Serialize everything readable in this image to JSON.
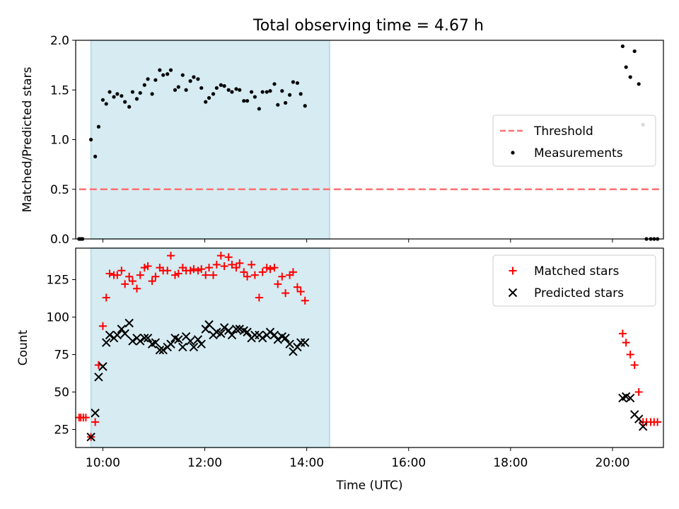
{
  "figure": {
    "title": "Total observing time = 4.67 h"
  },
  "chart_data": [
    {
      "type": "scatter",
      "ylabel": "Matched/Predicted stars",
      "xlabel": "",
      "xlim": [
        "09:28",
        "21:00"
      ],
      "ylim": [
        0,
        2.0
      ],
      "yticks": [
        0.0,
        0.5,
        1.0,
        1.5,
        2.0
      ],
      "ytick_labels": [
        "0.0",
        "0.5",
        "1.0",
        "1.5",
        "2.0"
      ],
      "xticks": [
        "10:00",
        "12:00",
        "14:00",
        "16:00",
        "18:00",
        "20:00"
      ],
      "observing_window": [
        "09:46",
        "14:27"
      ],
      "legend_position": "center-right",
      "threshold": {
        "name": "Threshold",
        "value": 0.5,
        "x_range": [
          "09:32",
          "20:57"
        ],
        "color": "#ff7070",
        "style": "dashed"
      },
      "series": [
        {
          "name": "Measurements",
          "marker": "dot",
          "color": "#000000",
          "points": [
            [
              "09:32",
              0
            ],
            [
              "09:34",
              0
            ],
            [
              "09:36",
              0
            ],
            [
              "09:46",
              1.0
            ],
            [
              "09:51",
              0.83
            ],
            [
              "09:55",
              1.13
            ],
            [
              "10:00",
              1.4
            ],
            [
              "10:04",
              1.36
            ],
            [
              "10:08",
              1.48
            ],
            [
              "10:13",
              1.43
            ],
            [
              "10:17",
              1.46
            ],
            [
              "10:22",
              1.44
            ],
            [
              "10:26",
              1.38
            ],
            [
              "10:31",
              1.33
            ],
            [
              "10:35",
              1.48
            ],
            [
              "10:40",
              1.41
            ],
            [
              "10:44",
              1.47
            ],
            [
              "10:49",
              1.55
            ],
            [
              "10:53",
              1.61
            ],
            [
              "10:58",
              1.46
            ],
            [
              "11:02",
              1.6
            ],
            [
              "11:07",
              1.7
            ],
            [
              "11:11",
              1.65
            ],
            [
              "11:16",
              1.66
            ],
            [
              "11:20",
              1.7
            ],
            [
              "11:25",
              1.5
            ],
            [
              "11:29",
              1.53
            ],
            [
              "11:34",
              1.65
            ],
            [
              "11:38",
              1.5
            ],
            [
              "11:43",
              1.59
            ],
            [
              "11:47",
              1.63
            ],
            [
              "11:52",
              1.61
            ],
            [
              "11:56",
              1.52
            ],
            [
              "12:01",
              1.38
            ],
            [
              "12:05",
              1.42
            ],
            [
              "12:10",
              1.46
            ],
            [
              "12:14",
              1.52
            ],
            [
              "12:19",
              1.55
            ],
            [
              "12:23",
              1.54
            ],
            [
              "12:28",
              1.5
            ],
            [
              "12:32",
              1.48
            ],
            [
              "12:37",
              1.51
            ],
            [
              "12:41",
              1.5
            ],
            [
              "12:46",
              1.39
            ],
            [
              "12:50",
              1.39
            ],
            [
              "12:55",
              1.48
            ],
            [
              "12:59",
              1.43
            ],
            [
              "13:04",
              1.31
            ],
            [
              "13:08",
              1.48
            ],
            [
              "13:13",
              1.48
            ],
            [
              "13:17",
              1.49
            ],
            [
              "13:22",
              1.56
            ],
            [
              "13:26",
              1.35
            ],
            [
              "13:31",
              1.49
            ],
            [
              "13:35",
              1.37
            ],
            [
              "13:40",
              1.45
            ],
            [
              "13:44",
              1.58
            ],
            [
              "13:49",
              1.57
            ],
            [
              "13:53",
              1.46
            ],
            [
              "13:58",
              1.34
            ],
            [
              "20:12",
              1.94
            ],
            [
              "20:16",
              1.73
            ],
            [
              "20:21",
              1.63
            ],
            [
              "20:26",
              1.89
            ],
            [
              "20:31",
              1.56
            ],
            [
              "20:36",
              1.15
            ],
            [
              "20:40",
              0
            ],
            [
              "20:45",
              0
            ],
            [
              "20:49",
              0
            ],
            [
              "20:53",
              0
            ]
          ]
        }
      ]
    },
    {
      "type": "scatter",
      "ylabel": "Count",
      "xlabel": "Time (UTC)",
      "xlim": [
        "09:28",
        "21:00"
      ],
      "ylim": [
        13,
        146
      ],
      "yticks": [
        25,
        50,
        75,
        100,
        125
      ],
      "ytick_labels": [
        "25",
        "50",
        "75",
        "100",
        "125"
      ],
      "xticks": [
        "10:00",
        "12:00",
        "14:00",
        "16:00",
        "18:00",
        "20:00"
      ],
      "observing_window": [
        "09:46",
        "14:27"
      ],
      "legend_position": "upper-right",
      "series": [
        {
          "name": "Matched stars",
          "marker": "plus",
          "color": "#ff0000",
          "points": [
            [
              "09:32",
              33
            ],
            [
              "09:34",
              33
            ],
            [
              "09:37",
              33
            ],
            [
              "09:40",
              33
            ],
            [
              "09:46",
              20
            ],
            [
              "09:51",
              30
            ],
            [
              "09:55",
              68
            ],
            [
              "10:00",
              94
            ],
            [
              "10:04",
              113
            ],
            [
              "10:08",
              129
            ],
            [
              "10:13",
              128
            ],
            [
              "10:17",
              128
            ],
            [
              "10:22",
              131
            ],
            [
              "10:26",
              122
            ],
            [
              "10:31",
              127
            ],
            [
              "10:35",
              124
            ],
            [
              "10:40",
              119
            ],
            [
              "10:44",
              128
            ],
            [
              "10:49",
              133
            ],
            [
              "10:53",
              134
            ],
            [
              "10:58",
              124
            ],
            [
              "11:02",
              127
            ],
            [
              "11:07",
              133
            ],
            [
              "11:11",
              131
            ],
            [
              "11:16",
              131
            ],
            [
              "11:20",
              141
            ],
            [
              "11:25",
              128
            ],
            [
              "11:29",
              129
            ],
            [
              "11:34",
              133
            ],
            [
              "11:38",
              131
            ],
            [
              "11:43",
              131
            ],
            [
              "11:47",
              132
            ],
            [
              "11:52",
              131
            ],
            [
              "11:56",
              132
            ],
            [
              "12:01",
              128
            ],
            [
              "12:05",
              133
            ],
            [
              "12:10",
              128
            ],
            [
              "12:14",
              135
            ],
            [
              "12:19",
              141
            ],
            [
              "12:23",
              134
            ],
            [
              "12:28",
              140
            ],
            [
              "12:32",
              135
            ],
            [
              "12:37",
              133
            ],
            [
              "12:41",
              136
            ],
            [
              "12:46",
              130
            ],
            [
              "12:50",
              127
            ],
            [
              "12:55",
              135
            ],
            [
              "12:59",
              128
            ],
            [
              "13:04",
              113
            ],
            [
              "13:08",
              130
            ],
            [
              "13:13",
              133
            ],
            [
              "13:17",
              132
            ],
            [
              "13:22",
              133
            ],
            [
              "13:26",
              122
            ],
            [
              "13:31",
              127
            ],
            [
              "13:35",
              116
            ],
            [
              "13:40",
              128
            ],
            [
              "13:44",
              130
            ],
            [
              "13:49",
              120
            ],
            [
              "13:53",
              117
            ],
            [
              "13:58",
              111
            ],
            [
              "20:12",
              89
            ],
            [
              "20:16",
              83
            ],
            [
              "20:21",
              75
            ],
            [
              "20:26",
              68
            ],
            [
              "20:31",
              50
            ],
            [
              "20:36",
              30
            ],
            [
              "20:40",
              30
            ],
            [
              "20:45",
              30
            ],
            [
              "20:49",
              30
            ],
            [
              "20:53",
              30
            ]
          ]
        },
        {
          "name": "Predicted stars",
          "marker": "x",
          "color": "#000000",
          "points": [
            [
              "09:46",
              20
            ],
            [
              "09:51",
              36
            ],
            [
              "09:55",
              60
            ],
            [
              "10:00",
              67
            ],
            [
              "10:04",
              83
            ],
            [
              "10:08",
              88
            ],
            [
              "10:13",
              86
            ],
            [
              "10:17",
              88
            ],
            [
              "10:22",
              92
            ],
            [
              "10:26",
              89
            ],
            [
              "10:31",
              96
            ],
            [
              "10:35",
              84
            ],
            [
              "10:40",
              86
            ],
            [
              "10:44",
              84
            ],
            [
              "10:49",
              86
            ],
            [
              "10:53",
              86
            ],
            [
              "10:58",
              82
            ],
            [
              "11:02",
              83
            ],
            [
              "11:07",
              78
            ],
            [
              "11:11",
              78
            ],
            [
              "11:16",
              80
            ],
            [
              "11:20",
              82
            ],
            [
              "11:25",
              86
            ],
            [
              "11:29",
              85
            ],
            [
              "11:34",
              80
            ],
            [
              "11:38",
              87
            ],
            [
              "11:43",
              84
            ],
            [
              "11:47",
              80
            ],
            [
              "11:52",
              85
            ],
            [
              "11:56",
              82
            ],
            [
              "12:01",
              92
            ],
            [
              "12:05",
              95
            ],
            [
              "12:10",
              88
            ],
            [
              "12:14",
              90
            ],
            [
              "12:19",
              89
            ],
            [
              "12:23",
              93
            ],
            [
              "12:28",
              91
            ],
            [
              "12:32",
              88
            ],
            [
              "12:37",
              92
            ],
            [
              "12:41",
              92
            ],
            [
              "12:46",
              91
            ],
            [
              "12:50",
              90
            ],
            [
              "12:55",
              86
            ],
            [
              "12:59",
              88
            ],
            [
              "13:04",
              88
            ],
            [
              "13:08",
              86
            ],
            [
              "13:13",
              88
            ],
            [
              "13:17",
              90
            ],
            [
              "13:22",
              88
            ],
            [
              "13:26",
              85
            ],
            [
              "13:31",
              87
            ],
            [
              "13:35",
              86
            ],
            [
              "13:40",
              82
            ],
            [
              "13:44",
              77
            ],
            [
              "13:49",
              80
            ],
            [
              "13:53",
              83
            ],
            [
              "13:58",
              83
            ],
            [
              "20:12",
              46
            ],
            [
              "20:16",
              47
            ],
            [
              "20:21",
              46
            ],
            [
              "20:26",
              35
            ],
            [
              "20:31",
              32
            ],
            [
              "20:36",
              27
            ]
          ]
        }
      ]
    }
  ]
}
